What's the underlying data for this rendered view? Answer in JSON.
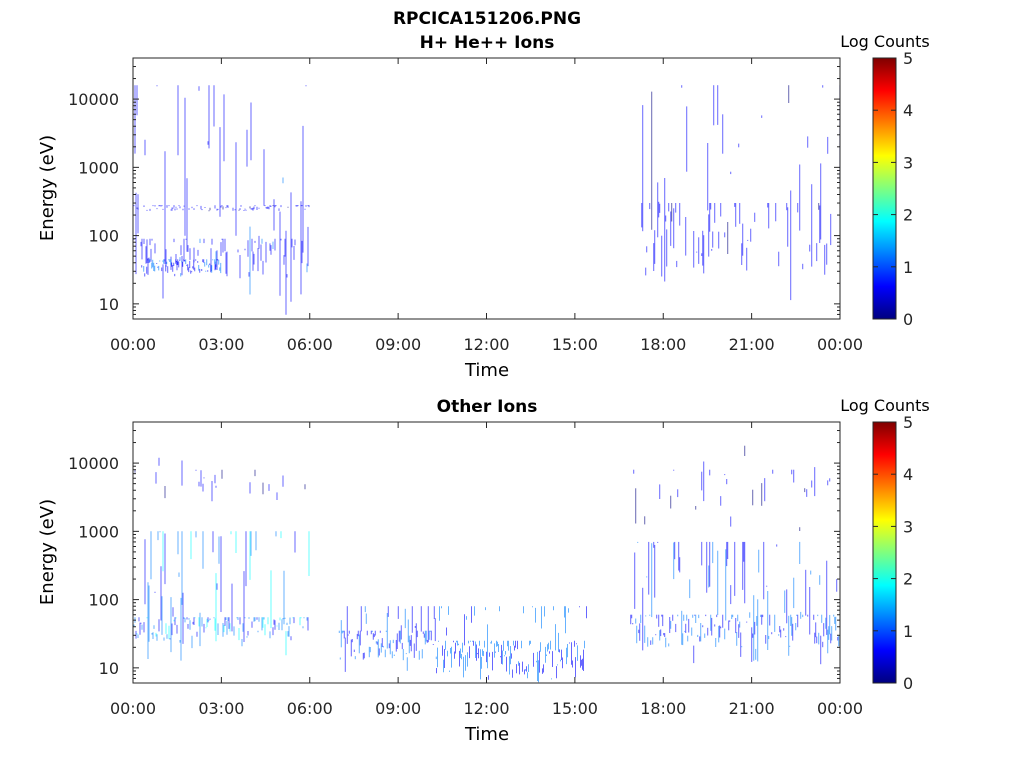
{
  "title_line1": "RPCICA151206.PNG",
  "colormap": [
    "#00007f",
    "#0000ff",
    "#007fff",
    "#00ffff",
    "#7fff7f",
    "#ffff00",
    "#ff7f00",
    "#ff0000",
    "#7f0000"
  ],
  "chart_data": [
    {
      "type": "heatmap",
      "title": "H+ He++ Ions",
      "xlabel": "Time",
      "ylabel": "Energy (eV)",
      "yscale": "log",
      "ylim": [
        6,
        40000
      ],
      "xlim_hours": [
        0,
        24
      ],
      "x_ticks": [
        "00:00",
        "03:00",
        "06:00",
        "09:00",
        "12:00",
        "15:00",
        "18:00",
        "21:00",
        "00:00"
      ],
      "y_ticks": [
        {
          "value": 10,
          "label": "10"
        },
        {
          "value": 100,
          "label": "100"
        },
        {
          "value": 1000,
          "label": "1000"
        },
        {
          "value": 10000,
          "label": "10000"
        }
      ],
      "colorbar": {
        "label": "Log Counts",
        "min": 0,
        "max": 5,
        "ticks": [
          "0",
          "1",
          "2",
          "3",
          "4",
          "5"
        ]
      },
      "regions": [
        {
          "t0": 0.0,
          "t1": 6.0,
          "emin": 6,
          "emax": 16000,
          "core_emin": 22,
          "core_emax": 90,
          "density": 0.55,
          "level": 0.8
        },
        {
          "t0": 0.3,
          "t1": 3.0,
          "emin": 25,
          "emax": 45,
          "core_emin": 28,
          "core_emax": 45,
          "density": 0.9,
          "level": 1.0
        },
        {
          "t0": 0.0,
          "t1": 6.0,
          "emin": 230,
          "emax": 280,
          "core_emin": 230,
          "core_emax": 280,
          "density": 0.45,
          "level": 0.6
        },
        {
          "t0": 16.9,
          "t1": 24.0,
          "emin": 6,
          "emax": 16000,
          "core_emin": 25,
          "core_emax": 300,
          "density": 0.4,
          "level": 0.7
        }
      ]
    },
    {
      "type": "heatmap",
      "title": "Other Ions",
      "xlabel": "Time",
      "ylabel": "Energy (eV)",
      "yscale": "log",
      "ylim": [
        6,
        40000
      ],
      "xlim_hours": [
        0,
        24
      ],
      "x_ticks": [
        "00:00",
        "03:00",
        "06:00",
        "09:00",
        "12:00",
        "15:00",
        "18:00",
        "21:00",
        "00:00"
      ],
      "y_ticks": [
        {
          "value": 10,
          "label": "10"
        },
        {
          "value": 100,
          "label": "100"
        },
        {
          "value": 1000,
          "label": "1000"
        },
        {
          "value": 10000,
          "label": "10000"
        }
      ],
      "colorbar": {
        "label": "Log Counts",
        "min": 0,
        "max": 5,
        "ticks": [
          "0",
          "1",
          "2",
          "3",
          "4",
          "5"
        ]
      },
      "regions": [
        {
          "t0": 0.0,
          "t1": 6.0,
          "emin": 12,
          "emax": 1000,
          "core_emin": 25,
          "core_emax": 55,
          "density": 0.85,
          "level": 1.4
        },
        {
          "t0": 0.0,
          "t1": 6.0,
          "emin": 2500,
          "emax": 12000,
          "core_emin": 3000,
          "core_emax": 8000,
          "density": 0.15,
          "level": 0.5
        },
        {
          "t0": 7.0,
          "t1": 10.3,
          "emin": 8,
          "emax": 80,
          "core_emin": 12,
          "core_emax": 35,
          "density": 0.9,
          "level": 1.1
        },
        {
          "t0": 10.3,
          "t1": 15.4,
          "emin": 6,
          "emax": 80,
          "core_emin": 7,
          "core_emax": 25,
          "density": 0.95,
          "level": 1.2
        },
        {
          "t0": 16.9,
          "t1": 24.0,
          "emin": 10,
          "emax": 700,
          "core_emin": 20,
          "core_emax": 60,
          "density": 0.75,
          "level": 1.1
        },
        {
          "t0": 16.9,
          "t1": 24.0,
          "emin": 1000,
          "emax": 20000,
          "core_emin": 2000,
          "core_emax": 8000,
          "density": 0.12,
          "level": 0.5
        }
      ]
    }
  ]
}
